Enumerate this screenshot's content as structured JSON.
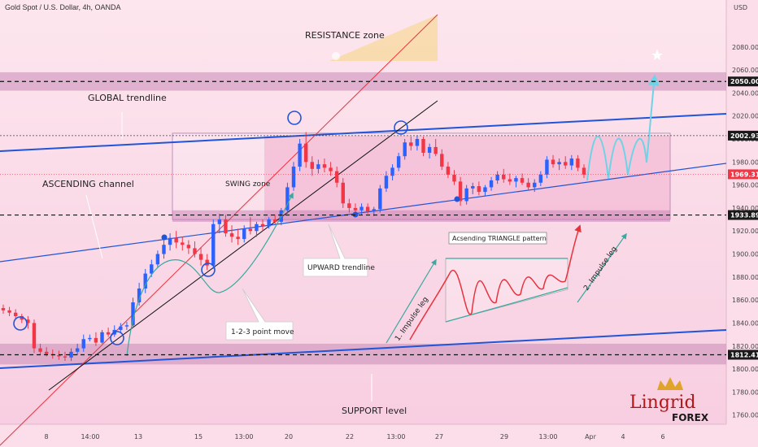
{
  "header": {
    "title": "Gold Spot / U.S. Dollar, 4h, OANDA",
    "currency": "USD"
  },
  "labels": {
    "resistance": "RESISTANCE zone",
    "global_trendline": "GLOBAL trendline",
    "ascending_channel": "ASCENDING channel",
    "swing_zone": "SWING zone",
    "upward_trendline": "UPWARD trendline",
    "point_move": "1-2-3 point move",
    "triangle": "Acsending TRIANGLE pattern",
    "impulse1": "1. Impulse leg",
    "impulse2": "2. Impulse leg",
    "support": "SUPPORT level"
  },
  "logo": {
    "name": "Lingrid",
    "sub": "FOREX"
  },
  "colors": {
    "bull": "#2962ff",
    "bear": "#f23645",
    "trend_blue": "#2155d9",
    "channel_red": "#e8323c",
    "projection": "#6ed3e6",
    "support_band": "#c98ab8"
  },
  "chart_data": {
    "type": "candlestick",
    "symbol": "Gold Spot / U.S. Dollar",
    "timeframe": "4h",
    "source": "OANDA",
    "y_axis": {
      "range": [
        1752,
        2118
      ],
      "ticks": [
        2080,
        2060,
        2040,
        2020,
        2000,
        1980,
        1960,
        1940,
        1920,
        1900,
        1880,
        1860,
        1840,
        1820,
        1800,
        1780,
        1760
      ],
      "tick_labels": [
        "2080.000",
        "2060.000",
        "2040.000",
        "2020.000",
        "2000.000",
        "1980.000",
        "1960.000",
        "1940.000",
        "1920.000",
        "1900.000",
        "1880.000",
        "1860.000",
        "1840.000",
        "1820.000",
        "1800.000",
        "1780.000",
        "1760.000"
      ]
    },
    "x_axis": {
      "tick_labels": [
        "8",
        "14:00",
        "13",
        "15",
        "13:00",
        "20",
        "22",
        "13:00",
        "27",
        "29",
        "13:00",
        "Apr",
        "4",
        "6"
      ]
    },
    "price_markers": [
      {
        "label": "2050.000",
        "value": 2050.0,
        "style": "dashed"
      },
      {
        "label": "2002.935",
        "value": 2002.935,
        "style": "dotted"
      },
      {
        "label": "1969.310",
        "value": 1969.31,
        "style": "current"
      },
      {
        "label": "1933.899",
        "value": 1933.899,
        "style": "dashed"
      },
      {
        "label": "1812.418",
        "value": 1812.418,
        "style": "dashed"
      }
    ],
    "zones": {
      "resistance": [
        2042,
        2058
      ],
      "support": [
        1804,
        1822
      ],
      "swing_box": [
        1930,
        2005
      ]
    },
    "candles": [
      {
        "o": 1853,
        "h": 1856,
        "l": 1848,
        "c": 1851
      },
      {
        "o": 1851,
        "h": 1854,
        "l": 1846,
        "c": 1849
      },
      {
        "o": 1849,
        "h": 1852,
        "l": 1843,
        "c": 1846
      },
      {
        "o": 1846,
        "h": 1848,
        "l": 1840,
        "c": 1843
      },
      {
        "o": 1843,
        "h": 1846,
        "l": 1835,
        "c": 1840
      },
      {
        "o": 1840,
        "h": 1843,
        "l": 1814,
        "c": 1818
      },
      {
        "o": 1818,
        "h": 1822,
        "l": 1812,
        "c": 1815
      },
      {
        "o": 1815,
        "h": 1819,
        "l": 1811,
        "c": 1813
      },
      {
        "o": 1813,
        "h": 1817,
        "l": 1809,
        "c": 1812
      },
      {
        "o": 1812,
        "h": 1816,
        "l": 1808,
        "c": 1811
      },
      {
        "o": 1811,
        "h": 1815,
        "l": 1807,
        "c": 1810
      },
      {
        "o": 1810,
        "h": 1818,
        "l": 1807,
        "c": 1815
      },
      {
        "o": 1815,
        "h": 1822,
        "l": 1812,
        "c": 1818
      },
      {
        "o": 1818,
        "h": 1830,
        "l": 1815,
        "c": 1826
      },
      {
        "o": 1826,
        "h": 1830,
        "l": 1824,
        "c": 1827
      },
      {
        "o": 1827,
        "h": 1832,
        "l": 1820,
        "c": 1823
      },
      {
        "o": 1823,
        "h": 1834,
        "l": 1822,
        "c": 1832
      },
      {
        "o": 1832,
        "h": 1836,
        "l": 1828,
        "c": 1830
      },
      {
        "o": 1830,
        "h": 1838,
        "l": 1828,
        "c": 1834
      },
      {
        "o": 1834,
        "h": 1840,
        "l": 1831,
        "c": 1837
      },
      {
        "o": 1837,
        "h": 1841,
        "l": 1834,
        "c": 1838
      },
      {
        "o": 1838,
        "h": 1862,
        "l": 1836,
        "c": 1858
      },
      {
        "o": 1858,
        "h": 1875,
        "l": 1855,
        "c": 1870
      },
      {
        "o": 1870,
        "h": 1887,
        "l": 1866,
        "c": 1883
      },
      {
        "o": 1883,
        "h": 1895,
        "l": 1880,
        "c": 1891
      },
      {
        "o": 1891,
        "h": 1903,
        "l": 1888,
        "c": 1900
      },
      {
        "o": 1900,
        "h": 1912,
        "l": 1896,
        "c": 1908
      },
      {
        "o": 1908,
        "h": 1918,
        "l": 1903,
        "c": 1914
      },
      {
        "o": 1914,
        "h": 1920,
        "l": 1905,
        "c": 1910
      },
      {
        "o": 1910,
        "h": 1915,
        "l": 1903,
        "c": 1908
      },
      {
        "o": 1908,
        "h": 1912,
        "l": 1900,
        "c": 1905
      },
      {
        "o": 1905,
        "h": 1911,
        "l": 1897,
        "c": 1900
      },
      {
        "o": 1900,
        "h": 1906,
        "l": 1890,
        "c": 1895
      },
      {
        "o": 1895,
        "h": 1900,
        "l": 1886,
        "c": 1890
      },
      {
        "o": 1890,
        "h": 1930,
        "l": 1887,
        "c": 1926
      },
      {
        "o": 1926,
        "h": 1935,
        "l": 1918,
        "c": 1930
      },
      {
        "o": 1930,
        "h": 1934,
        "l": 1915,
        "c": 1918
      },
      {
        "o": 1918,
        "h": 1925,
        "l": 1910,
        "c": 1915
      },
      {
        "o": 1915,
        "h": 1922,
        "l": 1908,
        "c": 1913
      },
      {
        "o": 1913,
        "h": 1925,
        "l": 1910,
        "c": 1922
      },
      {
        "o": 1922,
        "h": 1932,
        "l": 1917,
        "c": 1920
      },
      {
        "o": 1920,
        "h": 1928,
        "l": 1915,
        "c": 1926
      },
      {
        "o": 1926,
        "h": 1930,
        "l": 1920,
        "c": 1924
      },
      {
        "o": 1924,
        "h": 1932,
        "l": 1922,
        "c": 1930
      },
      {
        "o": 1930,
        "h": 1934,
        "l": 1926,
        "c": 1928
      },
      {
        "o": 1928,
        "h": 1940,
        "l": 1925,
        "c": 1938
      },
      {
        "o": 1938,
        "h": 1962,
        "l": 1935,
        "c": 1958
      },
      {
        "o": 1958,
        "h": 1980,
        "l": 1955,
        "c": 1976
      },
      {
        "o": 1976,
        "h": 2000,
        "l": 1972,
        "c": 1996
      },
      {
        "o": 1996,
        "h": 2006,
        "l": 1975,
        "c": 1980
      },
      {
        "o": 1980,
        "h": 1985,
        "l": 1968,
        "c": 1974
      },
      {
        "o": 1974,
        "h": 1982,
        "l": 1970,
        "c": 1978
      },
      {
        "o": 1978,
        "h": 1983,
        "l": 1971,
        "c": 1975
      },
      {
        "o": 1975,
        "h": 1980,
        "l": 1968,
        "c": 1972
      },
      {
        "o": 1972,
        "h": 1976,
        "l": 1958,
        "c": 1962
      },
      {
        "o": 1962,
        "h": 1966,
        "l": 1940,
        "c": 1944
      },
      {
        "o": 1944,
        "h": 1948,
        "l": 1936,
        "c": 1940
      },
      {
        "o": 1940,
        "h": 1944,
        "l": 1934,
        "c": 1938
      },
      {
        "o": 1938,
        "h": 1944,
        "l": 1934,
        "c": 1941
      },
      {
        "o": 1941,
        "h": 1944,
        "l": 1935,
        "c": 1937
      },
      {
        "o": 1937,
        "h": 1941,
        "l": 1933,
        "c": 1939
      },
      {
        "o": 1939,
        "h": 1960,
        "l": 1936,
        "c": 1957
      },
      {
        "o": 1957,
        "h": 1972,
        "l": 1954,
        "c": 1968
      },
      {
        "o": 1968,
        "h": 1978,
        "l": 1964,
        "c": 1975
      },
      {
        "o": 1975,
        "h": 1988,
        "l": 1972,
        "c": 1985
      },
      {
        "o": 1985,
        "h": 2000,
        "l": 1982,
        "c": 1997
      },
      {
        "o": 1997,
        "h": 2002,
        "l": 1990,
        "c": 1994
      },
      {
        "o": 1994,
        "h": 2003,
        "l": 1990,
        "c": 2000
      },
      {
        "o": 2000,
        "h": 2002,
        "l": 1985,
        "c": 1988
      },
      {
        "o": 1988,
        "h": 1996,
        "l": 1983,
        "c": 1993
      },
      {
        "o": 1993,
        "h": 2000,
        "l": 1985,
        "c": 1987
      },
      {
        "o": 1987,
        "h": 1991,
        "l": 1973,
        "c": 1976
      },
      {
        "o": 1976,
        "h": 1980,
        "l": 1966,
        "c": 1969
      },
      {
        "o": 1969,
        "h": 1973,
        "l": 1960,
        "c": 1963
      },
      {
        "o": 1963,
        "h": 1967,
        "l": 1942,
        "c": 1946
      },
      {
        "o": 1946,
        "h": 1960,
        "l": 1943,
        "c": 1957
      },
      {
        "o": 1957,
        "h": 1962,
        "l": 1952,
        "c": 1959
      },
      {
        "o": 1959,
        "h": 1963,
        "l": 1951,
        "c": 1954
      },
      {
        "o": 1954,
        "h": 1960,
        "l": 1950,
        "c": 1958
      },
      {
        "o": 1958,
        "h": 1967,
        "l": 1955,
        "c": 1964
      },
      {
        "o": 1964,
        "h": 1972,
        "l": 1961,
        "c": 1969
      },
      {
        "o": 1969,
        "h": 1974,
        "l": 1962,
        "c": 1965
      },
      {
        "o": 1965,
        "h": 1970,
        "l": 1960,
        "c": 1963
      },
      {
        "o": 1963,
        "h": 1968,
        "l": 1958,
        "c": 1966
      },
      {
        "o": 1966,
        "h": 1970,
        "l": 1960,
        "c": 1962
      },
      {
        "o": 1962,
        "h": 1966,
        "l": 1955,
        "c": 1958
      },
      {
        "o": 1958,
        "h": 1965,
        "l": 1954,
        "c": 1962
      },
      {
        "o": 1962,
        "h": 1972,
        "l": 1959,
        "c": 1969
      },
      {
        "o": 1969,
        "h": 1985,
        "l": 1966,
        "c": 1982
      },
      {
        "o": 1982,
        "h": 1986,
        "l": 1975,
        "c": 1978
      },
      {
        "o": 1978,
        "h": 1983,
        "l": 1973,
        "c": 1980
      },
      {
        "o": 1980,
        "h": 1985,
        "l": 1974,
        "c": 1977
      },
      {
        "o": 1977,
        "h": 1986,
        "l": 1973,
        "c": 1983
      },
      {
        "o": 1983,
        "h": 1986,
        "l": 1972,
        "c": 1975
      },
      {
        "o": 1975,
        "h": 1978,
        "l": 1966,
        "c": 1969
      }
    ]
  }
}
